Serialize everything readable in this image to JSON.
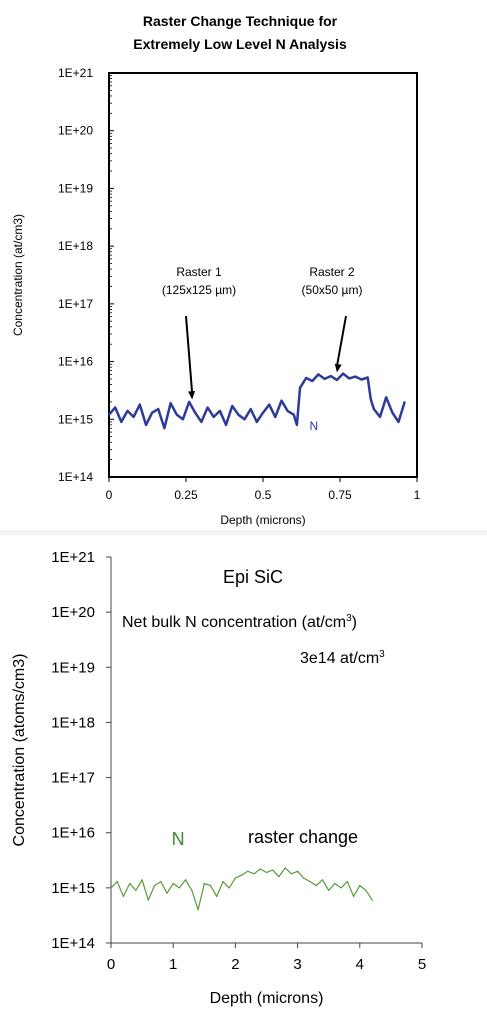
{
  "chart_data": [
    {
      "type": "line",
      "title_lines": [
        "Raster Change Technique for",
        "Extremely Low Level N Analysis"
      ],
      "xlabel": "Depth (microns)",
      "ylabel": "Concentration (at/cm3)",
      "xlim": [
        0,
        1
      ],
      "ylim": [
        100000000000000.0,
        1e+21
      ],
      "yscale": "log",
      "xticks": [
        "0",
        "0.25",
        "0.5",
        "0.75",
        "1"
      ],
      "yticks": [
        "1E+14",
        "1E+15",
        "1E+16",
        "1E+17",
        "1E+18",
        "1E+19",
        "1E+20",
        "1E+21"
      ],
      "grid": false,
      "frame": "box",
      "series": [
        {
          "name": "N",
          "color": "#2e3a9a",
          "x": [
            0.0,
            0.02,
            0.04,
            0.06,
            0.08,
            0.1,
            0.12,
            0.14,
            0.16,
            0.18,
            0.2,
            0.22,
            0.24,
            0.26,
            0.28,
            0.3,
            0.32,
            0.34,
            0.36,
            0.38,
            0.4,
            0.42,
            0.44,
            0.46,
            0.48,
            0.5,
            0.52,
            0.54,
            0.56,
            0.58,
            0.6,
            0.61,
            0.62,
            0.64,
            0.66,
            0.68,
            0.7,
            0.72,
            0.74,
            0.76,
            0.78,
            0.8,
            0.82,
            0.84,
            0.85,
            0.86,
            0.88,
            0.9,
            0.92,
            0.94,
            0.96
          ],
          "y": [
            1200000000000000.0,
            1600000000000000.0,
            900000000000000.0,
            1400000000000000.0,
            1100000000000000.0,
            1800000000000000.0,
            800000000000000.0,
            1300000000000000.0,
            1500000000000000.0,
            700000000000000.0,
            1900000000000000.0,
            1200000000000000.0,
            1000000000000000.0,
            2000000000000000.0,
            1300000000000000.0,
            900000000000000.0,
            1600000000000000.0,
            1100000000000000.0,
            1400000000000000.0,
            800000000000000.0,
            1700000000000000.0,
            1200000000000000.0,
            1000000000000000.0,
            1500000000000000.0,
            900000000000000.0,
            1300000000000000.0,
            1800000000000000.0,
            1100000000000000.0,
            2100000000000000.0,
            1400000000000000.0,
            1200000000000000.0,
            800000000000000.0,
            3500000000000000.0,
            5200000000000000.0,
            4600000000000000.0,
            6000000000000000.0,
            5000000000000000.0,
            5600000000000000.0,
            4800000000000000.0,
            6200000000000000.0,
            5100000000000000.0,
            5500000000000000.0,
            4900000000000000.0,
            5300000000000000.0,
            2200000000000000.0,
            1500000000000000.0,
            1100000000000000.0,
            2400000000000000.0,
            1300000000000000.0,
            900000000000000.0,
            2000000000000000.0
          ]
        }
      ],
      "annotations": [
        {
          "text_lines": [
            "Raster 1",
            "(125x125 µm)"
          ],
          "arrow_to": [
            0.27,
            2200000000000000.0
          ]
        },
        {
          "text_lines": [
            "Raster 2",
            "(50x50 µm)"
          ],
          "arrow_to": [
            0.74,
            6500000000000000.0
          ]
        }
      ],
      "series_label": "N"
    },
    {
      "type": "line",
      "xlabel": "Depth (microns)",
      "ylabel": "Concentration (atoms/cm3)",
      "xlim": [
        0,
        5
      ],
      "ylim": [
        100000000000000.0,
        1e+21
      ],
      "yscale": "log",
      "xticks": [
        "0",
        "1",
        "2",
        "3",
        "4",
        "5"
      ],
      "yticks": [
        "1E+14",
        "1E+15",
        "1E+16",
        "1E+17",
        "1E+18",
        "1E+19",
        "1E+20",
        "1E+21"
      ],
      "grid": false,
      "frame": "left-bottom",
      "series": [
        {
          "name": "N",
          "color": "#5a9a3a",
          "x": [
            0.0,
            0.1,
            0.2,
            0.3,
            0.4,
            0.5,
            0.6,
            0.7,
            0.8,
            0.9,
            1.0,
            1.1,
            1.2,
            1.3,
            1.4,
            1.5,
            1.6,
            1.7,
            1.8,
            1.9,
            2.0,
            2.1,
            2.2,
            2.3,
            2.4,
            2.5,
            2.6,
            2.7,
            2.8,
            2.9,
            3.0,
            3.1,
            3.2,
            3.3,
            3.4,
            3.5,
            3.6,
            3.7,
            3.8,
            3.9,
            4.0,
            4.1,
            4.2
          ],
          "y": [
            1000000000000000.0,
            1300000000000000.0,
            700000000000000.0,
            1200000000000000.0,
            900000000000000.0,
            1400000000000000.0,
            600000000000000.0,
            1100000000000000.0,
            1300000000000000.0,
            800000000000000.0,
            1200000000000000.0,
            1000000000000000.0,
            1400000000000000.0,
            900000000000000.0,
            400000000000000.0,
            1200000000000000.0,
            1100000000000000.0,
            700000000000000.0,
            1300000000000000.0,
            1000000000000000.0,
            1500000000000000.0,
            1700000000000000.0,
            2000000000000000.0,
            1800000000000000.0,
            2200000000000000.0,
            1900000000000000.0,
            2100000000000000.0,
            1600000000000000.0,
            2300000000000000.0,
            1800000000000000.0,
            2000000000000000.0,
            1500000000000000.0,
            1300000000000000.0,
            1100000000000000.0,
            1400000000000000.0,
            900000000000000.0,
            1200000000000000.0,
            1000000000000000.0,
            1300000000000000.0,
            700000000000000.0,
            1100000000000000.0,
            900000000000000.0,
            600000000000000.0
          ]
        }
      ],
      "annotations_text": {
        "material": "Epi SiC",
        "net_label": "Net bulk N concentration (at/cm",
        "net_sup": "3",
        "net_close": ")",
        "value": "3e14 at/cm",
        "value_sup": "3",
        "raster_change": "raster change"
      },
      "series_label": "N"
    }
  ]
}
